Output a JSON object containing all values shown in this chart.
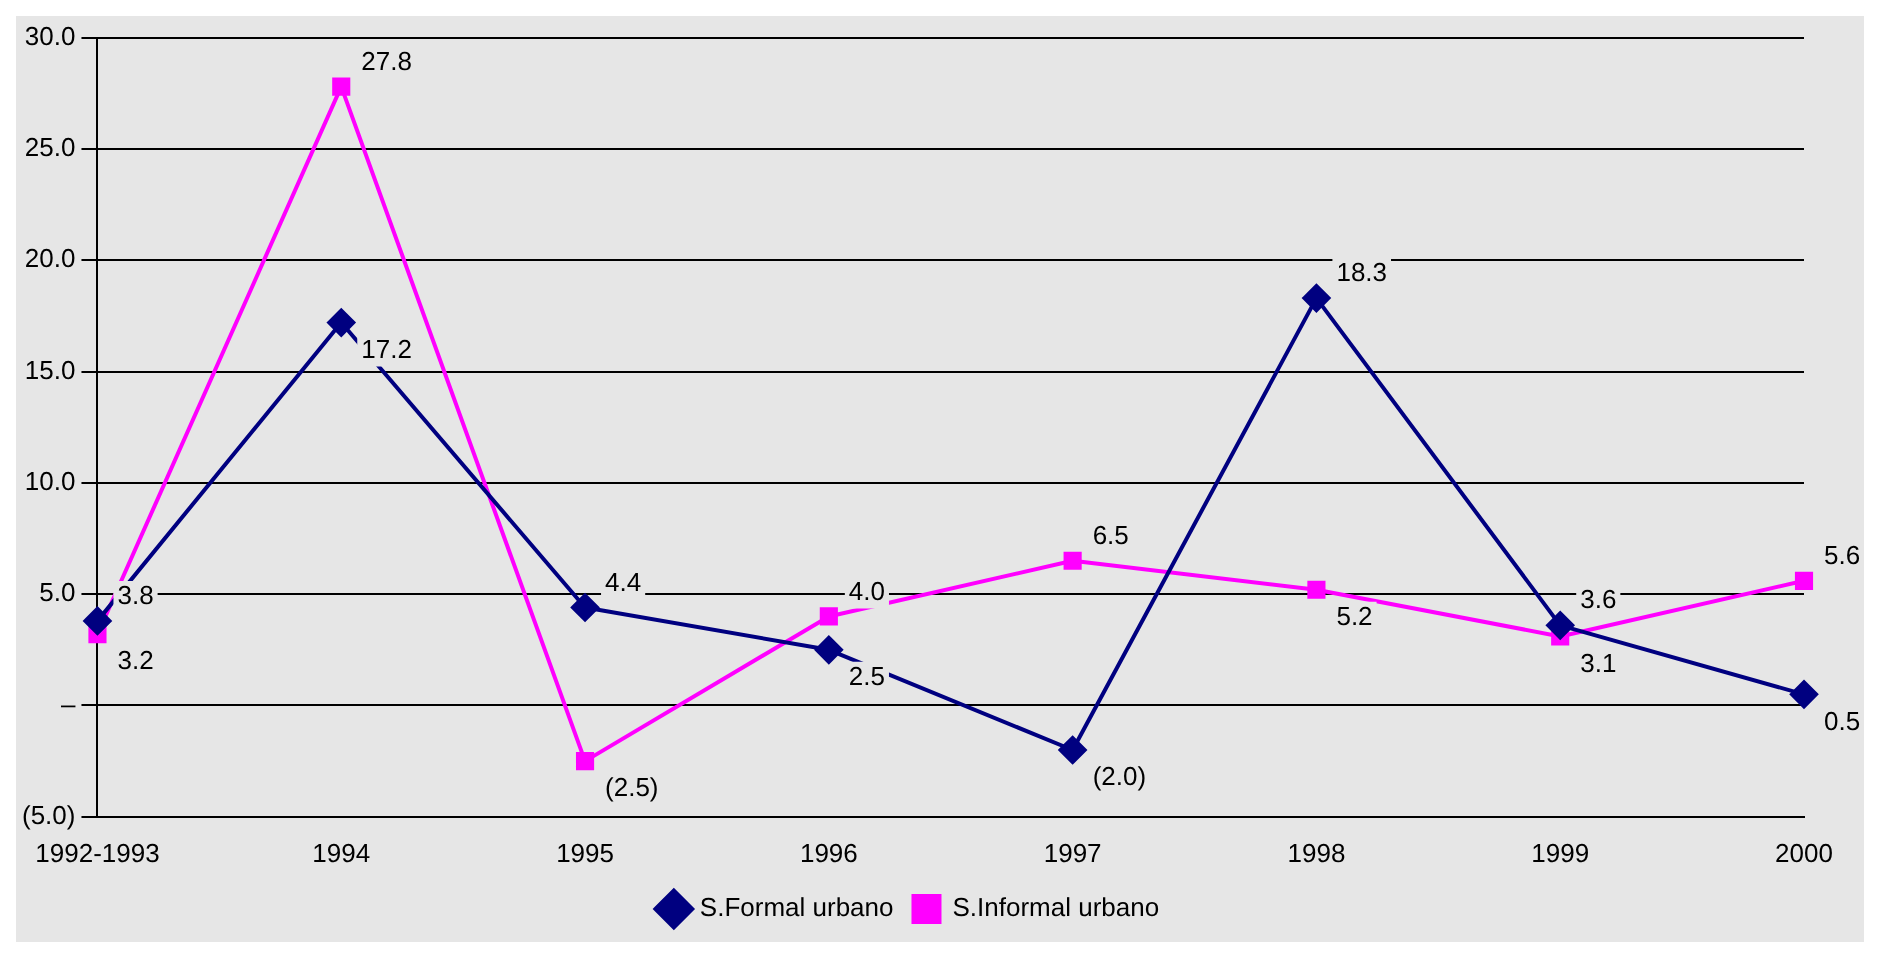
{
  "chart_data": {
    "type": "line",
    "categories": [
      "1992-1993",
      "1994",
      "1995",
      "1996",
      "1997",
      "1998",
      "1999",
      "2000"
    ],
    "series": [
      {
        "name": "S.Formal urbano",
        "color": "#000080",
        "marker": "diamond",
        "values": [
          3.8,
          17.2,
          4.4,
          2.5,
          -2.0,
          18.3,
          3.6,
          0.5
        ],
        "value_labels": [
          "3.8",
          "17.2",
          "4.4",
          "2.5",
          "(2.0)",
          "18.3",
          "3.6",
          "0.5"
        ]
      },
      {
        "name": "S.Informal urbano",
        "color": "#ff00ff",
        "marker": "square",
        "values": [
          3.2,
          27.8,
          -2.5,
          4.0,
          6.5,
          5.2,
          3.1,
          5.6
        ],
        "value_labels": [
          "3.2",
          "27.8",
          "(2.5)",
          "4.0",
          "6.5",
          "5.2",
          "3.1",
          "5.6"
        ]
      }
    ],
    "ylim": [
      -5,
      30
    ],
    "yticks": [
      {
        "value": -5,
        "label": "(5.0)"
      },
      {
        "value": 0,
        "label": "–"
      },
      {
        "value": 5,
        "label": "5.0"
      },
      {
        "value": 10,
        "label": "10.0"
      },
      {
        "value": 15,
        "label": "15.0"
      },
      {
        "value": 20,
        "label": "20.0"
      },
      {
        "value": 25,
        "label": "25.0"
      },
      {
        "value": 30,
        "label": "30.0"
      }
    ],
    "grid": "y",
    "legend": "bottom"
  }
}
